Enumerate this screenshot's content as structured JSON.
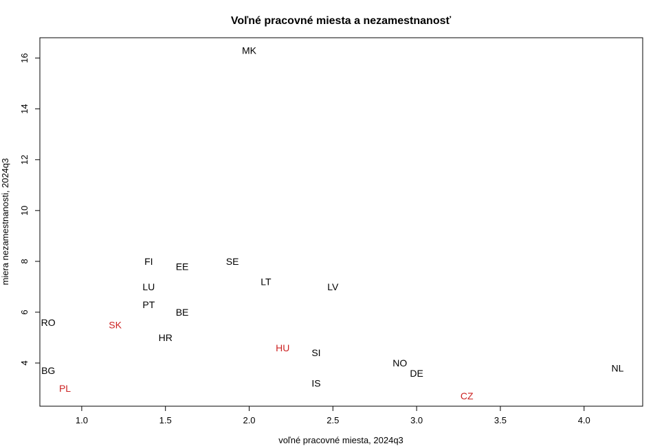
{
  "chart_data": {
    "type": "scatter",
    "title": "Voľné pracovné miesta a nezamestnanosť",
    "xlabel": "voľné pracovné miesta, 2024q3",
    "ylabel": "miera nezamestnanosti, 2024q3",
    "xlim": [
      0.75,
      4.35
    ],
    "ylim": [
      2.3,
      16.8
    ],
    "xticks": [
      "1.0",
      "1.5",
      "2.0",
      "2.5",
      "3.0",
      "3.5",
      "4.0"
    ],
    "yticks": [
      "4",
      "6",
      "8",
      "10",
      "12",
      "14",
      "16"
    ],
    "colors": {
      "default": "#000000",
      "highlight": "#cc2222"
    },
    "points": [
      {
        "label": "MK",
        "x": 2.0,
        "y": 16.3,
        "highlight": false
      },
      {
        "label": "FI",
        "x": 1.4,
        "y": 8.0,
        "highlight": false
      },
      {
        "label": "SE",
        "x": 1.9,
        "y": 8.0,
        "highlight": false
      },
      {
        "label": "EE",
        "x": 1.6,
        "y": 7.8,
        "highlight": false
      },
      {
        "label": "LT",
        "x": 2.1,
        "y": 7.2,
        "highlight": false
      },
      {
        "label": "LU",
        "x": 1.4,
        "y": 7.0,
        "highlight": false
      },
      {
        "label": "LV",
        "x": 2.5,
        "y": 7.0,
        "highlight": false
      },
      {
        "label": "PT",
        "x": 1.4,
        "y": 6.3,
        "highlight": false
      },
      {
        "label": "BE",
        "x": 1.6,
        "y": 6.0,
        "highlight": false
      },
      {
        "label": "RO",
        "x": 0.8,
        "y": 5.6,
        "highlight": false
      },
      {
        "label": "SK",
        "x": 1.2,
        "y": 5.5,
        "highlight": true
      },
      {
        "label": "HR",
        "x": 1.5,
        "y": 5.0,
        "highlight": false
      },
      {
        "label": "HU",
        "x": 2.2,
        "y": 4.6,
        "highlight": true
      },
      {
        "label": "SI",
        "x": 2.4,
        "y": 4.4,
        "highlight": false
      },
      {
        "label": "NO",
        "x": 2.9,
        "y": 4.0,
        "highlight": false
      },
      {
        "label": "NL",
        "x": 4.2,
        "y": 3.8,
        "highlight": false
      },
      {
        "label": "BG",
        "x": 0.8,
        "y": 3.7,
        "highlight": false
      },
      {
        "label": "DE",
        "x": 3.0,
        "y": 3.6,
        "highlight": false
      },
      {
        "label": "IS",
        "x": 2.4,
        "y": 3.2,
        "highlight": false
      },
      {
        "label": "PL",
        "x": 0.9,
        "y": 3.0,
        "highlight": true
      },
      {
        "label": "CZ",
        "x": 3.3,
        "y": 2.7,
        "highlight": true
      }
    ]
  }
}
